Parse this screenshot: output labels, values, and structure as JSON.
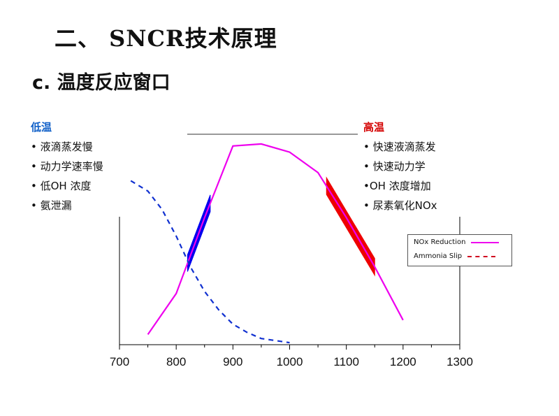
{
  "slide": {
    "title": "二、 SNCR技术原理",
    "subtitle": "c. 温度反应窗口"
  },
  "low_temp": {
    "heading": "低温",
    "items": [
      "• 液滴蒸发慢",
      "• 动力学速率慢",
      "• 低OH 浓度",
      "• 氨泄漏"
    ]
  },
  "high_temp": {
    "heading": "高温",
    "items": [
      "• 快速液滴蒸发",
      "• 快速动力学",
      "•OH 浓度增加",
      "• 尿素氧化NOx"
    ]
  },
  "colors": {
    "nox_reduction": "#ee00ee",
    "ammonia_slip": "#1030d0",
    "low_band": "#0000ee",
    "high_band": "#ee0000",
    "axis": "#000000"
  },
  "chart_data": {
    "type": "line",
    "xlim": [
      700,
      1300
    ],
    "x_ticks": [
      "700",
      "800",
      "900",
      "1000",
      "1100",
      "1200",
      "1300"
    ],
    "series": [
      {
        "name": "NOx Reduction",
        "style": "solid",
        "x": [
          750,
          800,
          850,
          900,
          950,
          1000,
          1050,
          1100,
          1150,
          1200
        ],
        "y": [
          5,
          25,
          62,
          97,
          98,
          94,
          84,
          62,
          38,
          12
        ]
      },
      {
        "name": "Ammonia Slip",
        "style": "dashed",
        "x": [
          720,
          750,
          775,
          800,
          825,
          850,
          875,
          900,
          925,
          950,
          1000
        ],
        "y": [
          80,
          75,
          66,
          53,
          38,
          26,
          17,
          10,
          6,
          3,
          1
        ]
      }
    ],
    "bands": [
      {
        "name": "low-temperature window",
        "x": [
          820,
          860
        ],
        "color": "#0000ee"
      },
      {
        "name": "high-temperature window",
        "x": [
          1065,
          1150
        ],
        "color": "#ee0000"
      }
    ]
  }
}
